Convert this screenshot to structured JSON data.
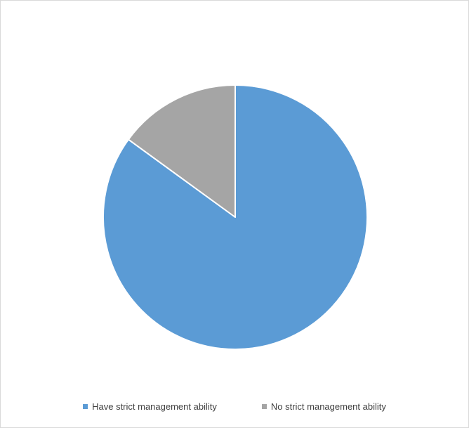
{
  "chart_data": {
    "type": "pie",
    "slices": [
      {
        "label": "Have strict management ability",
        "value": 85,
        "color": "#5b9bd5"
      },
      {
        "label": "No strict management ability",
        "value": 15,
        "color": "#a5a5a5"
      }
    ],
    "legend_position": "bottom"
  }
}
